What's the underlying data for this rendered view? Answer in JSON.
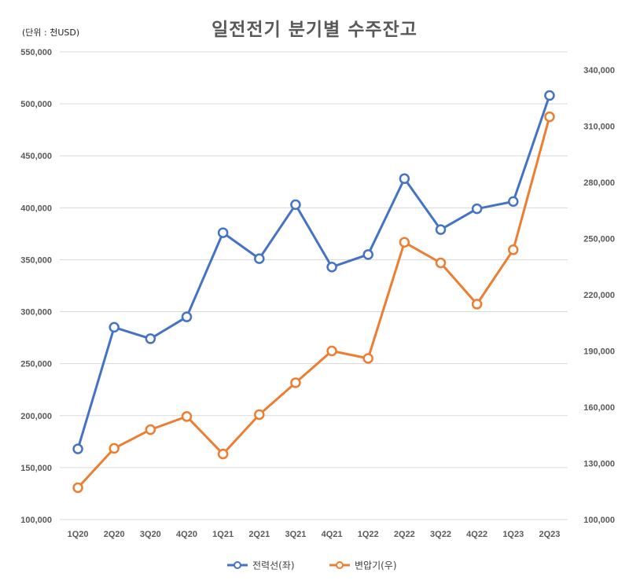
{
  "chart_data": {
    "type": "line",
    "title": "일전전기 분기별 수주잔고",
    "unit_label": "(단위 : 천USD)",
    "categories": [
      "1Q20",
      "2Q20",
      "3Q20",
      "4Q20",
      "1Q21",
      "2Q21",
      "3Q21",
      "4Q21",
      "1Q22",
      "2Q22",
      "3Q22",
      "4Q22",
      "1Q23",
      "2Q23"
    ],
    "series": [
      {
        "name": "전력선(좌)",
        "axis": "left",
        "color": "#4472C4",
        "values": [
          168000,
          285000,
          274000,
          295000,
          376000,
          351000,
          403000,
          343000,
          355000,
          428000,
          379000,
          399000,
          406000,
          508000
        ]
      },
      {
        "name": "변압기(우)",
        "axis": "right",
        "color": "#ED7D31",
        "values": [
          117000,
          138000,
          148000,
          155000,
          135000,
          156000,
          173000,
          190000,
          186000,
          248000,
          237000,
          215000,
          244000,
          315000
        ]
      }
    ],
    "y_left": {
      "lim": [
        100000,
        550000
      ],
      "ticks": [
        "100,000",
        "150,000",
        "200,000",
        "250,000",
        "300,000",
        "350,000",
        "400,000",
        "450,000",
        "500,000",
        "550,000"
      ]
    },
    "y_right": {
      "lim": [
        100000,
        340000
      ],
      "ticks": [
        "100,000",
        "130,000",
        "160,000",
        "190,000",
        "220,000",
        "250,000",
        "280,000",
        "310,000",
        "340,000"
      ]
    },
    "grid": true,
    "legend_position": "bottom"
  }
}
